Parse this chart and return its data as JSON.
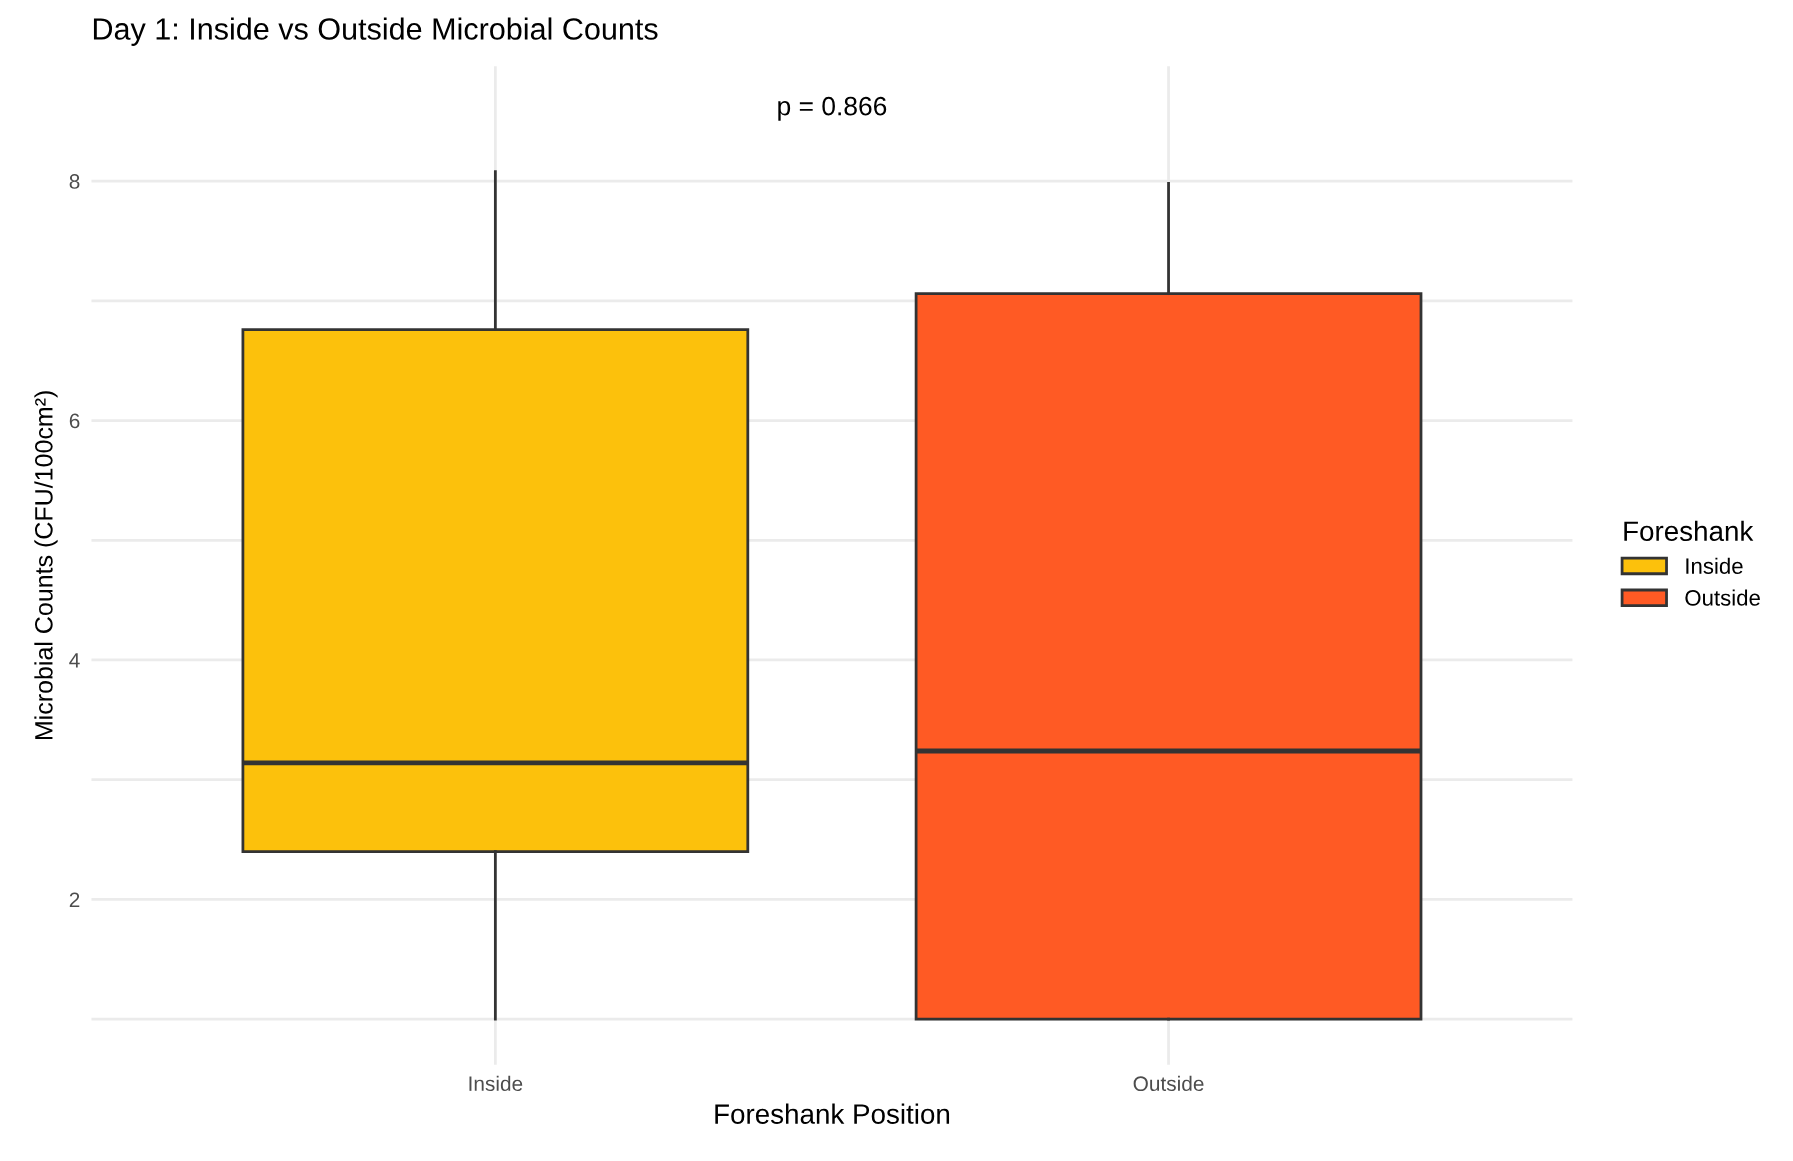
{
  "chart_data": {
    "type": "box",
    "title": "Day 1: Inside vs Outside Microbial Counts",
    "xlabel": "Foreshank Position",
    "ylabel": "Microbial Counts (CFU/100cm²)",
    "legend_title": "Foreshank",
    "categories": [
      "Inside",
      "Outside"
    ],
    "series": [
      {
        "name": "Inside",
        "color": "#fcc10c",
        "boxes": [
          {
            "low": 1.0,
            "q1": 2.4,
            "median": 3.14,
            "q3": 6.76,
            "high": 8.08
          },
          null
        ]
      },
      {
        "name": "Outside",
        "color": "#ff5a24",
        "boxes": [
          null,
          {
            "low": 1.0,
            "q1": 1.0,
            "median": 3.24,
            "q3": 7.06,
            "high": 7.98
          }
        ]
      }
    ],
    "ylim": [
      0.62,
      8.96
    ],
    "yticks": [
      {
        "value": 1,
        "label": null
      },
      2,
      {
        "value": 3,
        "label": null
      },
      4,
      {
        "value": 5,
        "label": null
      },
      6,
      {
        "value": 7,
        "label": null
      },
      8
    ],
    "grid": true,
    "legend": "right",
    "annotations": [
      "p = 0.866"
    ]
  }
}
